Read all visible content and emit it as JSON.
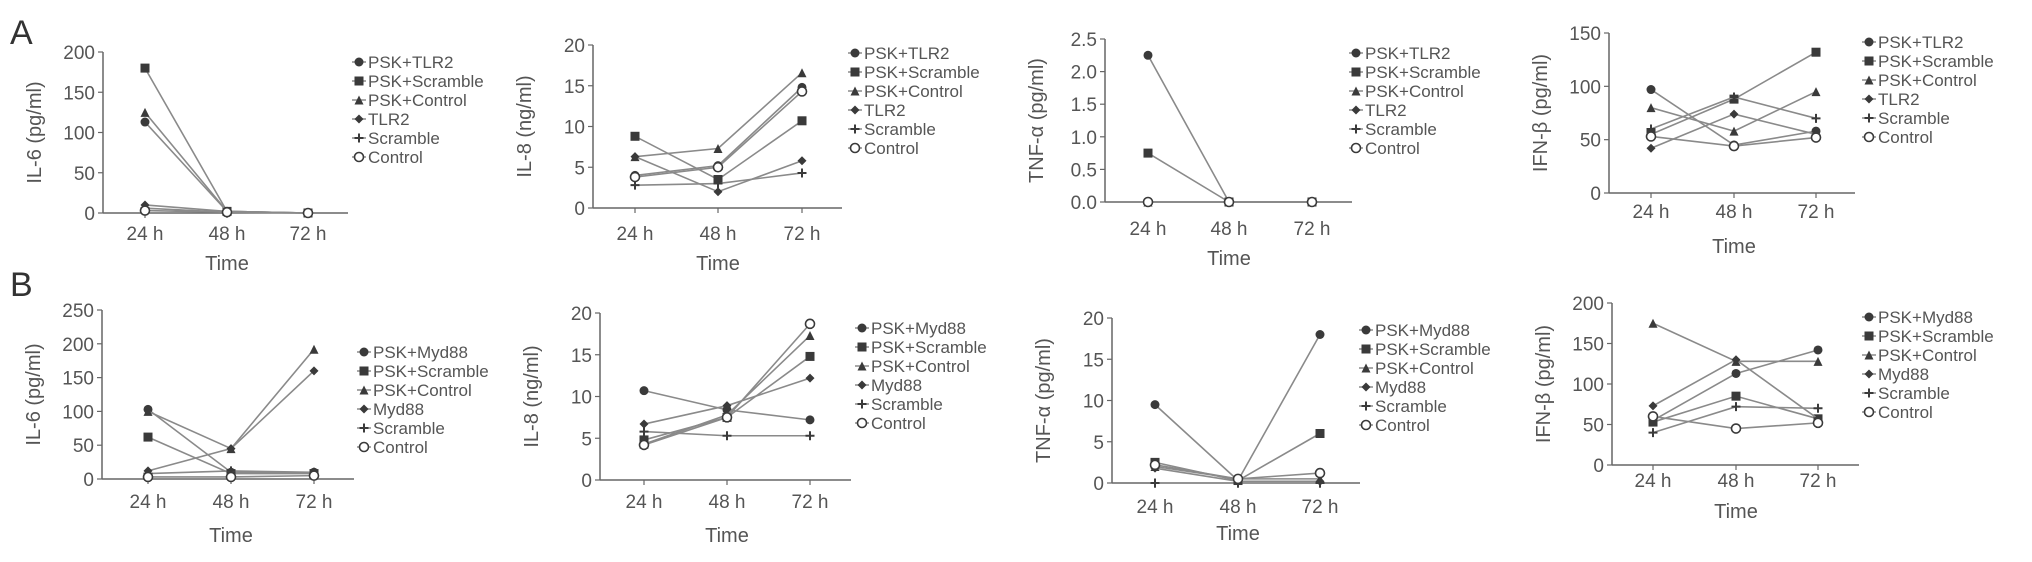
{
  "panel_labels": [
    "A",
    "B"
  ],
  "colors": {
    "line": "#8a8a8a",
    "marker": "#3a3a3a",
    "axis": "#666666",
    "text": "#555555"
  },
  "chart_data": [
    {
      "type": "line",
      "row": "A",
      "title": "",
      "xlabel": "Time",
      "ylabel": "IL-6 (pg/ml)",
      "categories": [
        "24 h",
        "48 h",
        "72 h"
      ],
      "ylim": [
        0,
        200
      ],
      "yticks": [
        "0",
        "50",
        "100",
        "150",
        "200"
      ],
      "grid": false,
      "legend": "right",
      "series": [
        {
          "name": "PSK+TLR2",
          "values": [
            113,
            2,
            0
          ]
        },
        {
          "name": "PSK+Scramble",
          "values": [
            180,
            2,
            0
          ]
        },
        {
          "name": "PSK+Control",
          "values": [
            125,
            2,
            0
          ]
        },
        {
          "name": "TLR2",
          "values": [
            10,
            2,
            0
          ]
        },
        {
          "name": "Scramble",
          "values": [
            6,
            1,
            0
          ]
        },
        {
          "name": "Control",
          "values": [
            3,
            1,
            0
          ]
        }
      ]
    },
    {
      "type": "line",
      "row": "A",
      "title": "",
      "xlabel": "Time",
      "ylabel": "IL-8 (ng/ml)",
      "categories": [
        "24 h",
        "48 h",
        "72 h"
      ],
      "ylim": [
        0,
        20
      ],
      "yticks": [
        "0",
        "5",
        "10",
        "15",
        "20"
      ],
      "grid": false,
      "legend": "right",
      "series": [
        {
          "name": "PSK+TLR2",
          "values": [
            4,
            5.2,
            14.8
          ]
        },
        {
          "name": "PSK+Scramble",
          "values": [
            8.8,
            3.5,
            10.7
          ]
        },
        {
          "name": "PSK+Control",
          "values": [
            6.3,
            7.3,
            16.6
          ]
        },
        {
          "name": "TLR2",
          "values": [
            6.3,
            2,
            5.8
          ]
        },
        {
          "name": "Scramble",
          "values": [
            2.8,
            3,
            4.3
          ]
        },
        {
          "name": "Control",
          "values": [
            3.8,
            5,
            14.3
          ]
        }
      ]
    },
    {
      "type": "line",
      "row": "A",
      "title": "",
      "xlabel": "Time",
      "ylabel": "TNF-α (pg/ml)",
      "categories": [
        "24 h",
        "48 h",
        "72 h"
      ],
      "ylim": [
        0,
        2.5
      ],
      "yticks": [
        "0.0",
        "0.5",
        "1.0",
        "1.5",
        "2.0",
        "2.5"
      ],
      "grid": false,
      "legend": "right",
      "series": [
        {
          "name": "PSK+TLR2",
          "values": [
            2.25,
            0,
            0
          ]
        },
        {
          "name": "PSK+Scramble",
          "values": [
            0.75,
            0,
            0
          ]
        },
        {
          "name": "PSK+Control",
          "values": [
            0,
            0,
            0
          ]
        },
        {
          "name": "TLR2",
          "values": [
            0,
            0,
            0
          ]
        },
        {
          "name": "Scramble",
          "values": [
            0,
            0,
            0
          ]
        },
        {
          "name": "Control",
          "values": [
            0,
            0,
            0
          ]
        }
      ]
    },
    {
      "type": "line",
      "row": "A",
      "title": "",
      "xlabel": "Time",
      "ylabel": "IFN-β (pg/ml)",
      "categories": [
        "24 h",
        "48 h",
        "72 h"
      ],
      "ylim": [
        0,
        150
      ],
      "yticks": [
        "0",
        "50",
        "100",
        "150"
      ],
      "grid": false,
      "legend": "right",
      "series": [
        {
          "name": "PSK+TLR2",
          "values": [
            97,
            45,
            58
          ]
        },
        {
          "name": "PSK+Scramble",
          "values": [
            55,
            88,
            132
          ]
        },
        {
          "name": "PSK+Control",
          "values": [
            80,
            58,
            95
          ]
        },
        {
          "name": "TLR2",
          "values": [
            42,
            74,
            55
          ]
        },
        {
          "name": "Scramble",
          "values": [
            60,
            90,
            70
          ]
        },
        {
          "name": "Control",
          "values": [
            53,
            44,
            52
          ]
        }
      ]
    },
    {
      "type": "line",
      "row": "B",
      "title": "",
      "xlabel": "Time",
      "ylabel": "IL-6 (pg/ml)",
      "categories": [
        "24 h",
        "48 h",
        "72 h"
      ],
      "ylim": [
        0,
        250
      ],
      "yticks": [
        "0",
        "50",
        "100",
        "150",
        "200",
        "250"
      ],
      "grid": false,
      "legend": "right",
      "series": [
        {
          "name": "PSK+Myd88",
          "values": [
            103,
            10,
            10
          ]
        },
        {
          "name": "PSK+Scramble",
          "values": [
            62,
            8,
            8
          ]
        },
        {
          "name": "PSK+Control",
          "values": [
            100,
            45,
            192
          ]
        },
        {
          "name": "Myd88",
          "values": [
            12,
            45,
            160
          ]
        },
        {
          "name": "Scramble",
          "values": [
            8,
            12,
            10
          ]
        },
        {
          "name": "Control",
          "values": [
            3,
            3,
            5
          ]
        }
      ]
    },
    {
      "type": "line",
      "row": "B",
      "title": "",
      "xlabel": "Time",
      "ylabel": "IL-8 (ng/ml)",
      "categories": [
        "24 h",
        "48 h",
        "72 h"
      ],
      "ylim": [
        0,
        20
      ],
      "yticks": [
        "0",
        "5",
        "10",
        "15",
        "20"
      ],
      "grid": false,
      "legend": "right",
      "series": [
        {
          "name": "PSK+Myd88",
          "values": [
            10.7,
            8.4,
            7.2
          ]
        },
        {
          "name": "PSK+Scramble",
          "values": [
            4.8,
            7.5,
            14.8
          ]
        },
        {
          "name": "PSK+Control",
          "values": [
            4.3,
            7.8,
            17.3
          ]
        },
        {
          "name": "Myd88",
          "values": [
            6.7,
            8.9,
            12.2
          ]
        },
        {
          "name": "Scramble",
          "values": [
            5.8,
            5.3,
            5.3
          ]
        },
        {
          "name": "Control",
          "values": [
            4.2,
            7.5,
            18.7
          ]
        }
      ]
    },
    {
      "type": "line",
      "row": "B",
      "title": "",
      "xlabel": "Time",
      "ylabel": "TNF-α (pg/ml)",
      "categories": [
        "24 h",
        "48 h",
        "72 h"
      ],
      "ylim": [
        0,
        20
      ],
      "yticks": [
        "0",
        "5",
        "10",
        "15",
        "20"
      ],
      "grid": false,
      "legend": "right",
      "series": [
        {
          "name": "PSK+Myd88",
          "values": [
            9.5,
            0.3,
            18
          ]
        },
        {
          "name": "PSK+Scramble",
          "values": [
            2.5,
            0.3,
            6
          ]
        },
        {
          "name": "PSK+Control",
          "values": [
            2,
            0.5,
            0.5
          ]
        },
        {
          "name": "Myd88",
          "values": [
            1.8,
            0.2,
            0.2
          ]
        },
        {
          "name": "Scramble",
          "values": [
            0,
            0,
            0
          ]
        },
        {
          "name": "Control",
          "values": [
            2.2,
            0.5,
            1.2
          ]
        }
      ]
    },
    {
      "type": "line",
      "row": "B",
      "title": "",
      "xlabel": "Time",
      "ylabel": "IFN-β (pg/ml)",
      "categories": [
        "24 h",
        "48 h",
        "72 h"
      ],
      "ylim": [
        0,
        200
      ],
      "yticks": [
        "0",
        "50",
        "100",
        "150",
        "200"
      ],
      "grid": false,
      "legend": "right",
      "series": [
        {
          "name": "PSK+Myd88",
          "values": [
            55,
            113,
            142
          ]
        },
        {
          "name": "PSK+Scramble",
          "values": [
            53,
            85,
            57
          ]
        },
        {
          "name": "PSK+Control",
          "values": [
            175,
            128,
            128
          ]
        },
        {
          "name": "Myd88",
          "values": [
            73,
            130,
            57
          ]
        },
        {
          "name": "Scramble",
          "values": [
            40,
            72,
            70
          ]
        },
        {
          "name": "Control",
          "values": [
            60,
            45,
            52
          ]
        }
      ]
    }
  ]
}
